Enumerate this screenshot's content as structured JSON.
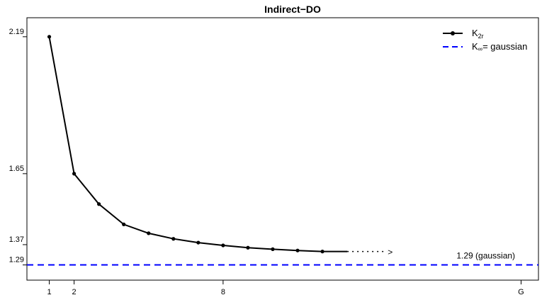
{
  "chart_data": {
    "type": "line",
    "title": "Indirect−DO",
    "xlabel": "",
    "ylabel": "",
    "x_ticks": [
      {
        "value": 1,
        "label": "1"
      },
      {
        "value": 2,
        "label": "2"
      },
      {
        "value": 8,
        "label": "8"
      },
      {
        "value": 20,
        "label": "G"
      }
    ],
    "y_ticks": [
      {
        "value": 1.29,
        "label": "1.29"
      },
      {
        "value": 1.37,
        "label": "1.37"
      },
      {
        "value": 1.65,
        "label": "1.65"
      },
      {
        "value": 2.19,
        "label": "2.19"
      }
    ],
    "xlim": [
      0.1,
      20.7
    ],
    "ylim": [
      1.23,
      2.265
    ],
    "series": [
      {
        "name": "K2r",
        "name_main": "K",
        "name_sub": "2r",
        "style": "line-with-points",
        "color": "#000000",
        "x": [
          1,
          2,
          3,
          4,
          5,
          6,
          7,
          8,
          9,
          10,
          11,
          12
        ],
        "y": [
          2.19,
          1.65,
          1.53,
          1.45,
          1.415,
          1.393,
          1.378,
          1.367,
          1.358,
          1.352,
          1.347,
          1.343
        ]
      },
      {
        "name": "K∞= gaussian",
        "name_main": "K",
        "name_sub": "∞",
        "name_rest": "= gaussian",
        "style": "dashed-horizontal",
        "color": "#0000ff",
        "y": 1.29
      }
    ],
    "continuation": {
      "from_x": 13,
      "to_x": 14.6,
      "y": 1.343,
      "text": ">"
    },
    "annotation": {
      "text": "1.29 (gaussian)",
      "x": 17.4,
      "y": 1.29
    },
    "legend_position": "top-right",
    "grid": false
  }
}
